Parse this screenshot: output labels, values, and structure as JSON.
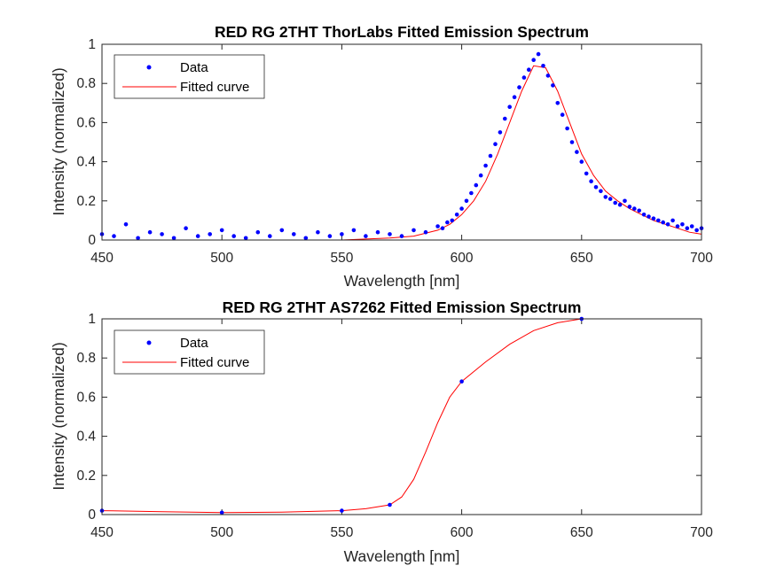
{
  "colors": {
    "data": "#0000ff",
    "fit": "#ff0000",
    "axis": "#262626"
  },
  "chart_data": [
    {
      "type": "scatter",
      "title": "RED RG 2THT ThorLabs Fitted Emission Spectrum",
      "xlabel": "Wavelength [nm]",
      "ylabel": "Intensity (normalized)",
      "xlim": [
        450,
        700
      ],
      "ylim": [
        0,
        1
      ],
      "xticks": [
        450,
        500,
        550,
        600,
        650,
        700
      ],
      "yticks": [
        0,
        0.2,
        0.4,
        0.6,
        0.8,
        1
      ],
      "xtick_labels": [
        "450",
        "500",
        "550",
        "600",
        "650",
        "700"
      ],
      "ytick_labels": [
        "0",
        "0.2",
        "0.4",
        "0.6",
        "0.8",
        "1"
      ],
      "legend": {
        "position": "top-left",
        "entries": [
          "Data",
          "Fitted curve"
        ]
      },
      "series": [
        {
          "name": "Data",
          "style": "points",
          "x": [
            450,
            455,
            460,
            465,
            470,
            475,
            480,
            485,
            490,
            495,
            500,
            505,
            510,
            515,
            520,
            525,
            530,
            535,
            540,
            545,
            550,
            555,
            560,
            565,
            570,
            575,
            580,
            585,
            590,
            592,
            594,
            596,
            598,
            600,
            602,
            604,
            606,
            608,
            610,
            612,
            614,
            616,
            618,
            620,
            622,
            624,
            626,
            628,
            630,
            632,
            634,
            636,
            638,
            640,
            642,
            644,
            646,
            648,
            650,
            652,
            654,
            656,
            658,
            660,
            662,
            664,
            666,
            668,
            670,
            672,
            674,
            676,
            678,
            680,
            682,
            684,
            686,
            688,
            690,
            692,
            694,
            696,
            698,
            700
          ],
          "y": [
            0.03,
            0.02,
            0.08,
            0.01,
            0.04,
            0.03,
            0.01,
            0.06,
            0.02,
            0.03,
            0.05,
            0.02,
            0.01,
            0.04,
            0.02,
            0.05,
            0.03,
            0.01,
            0.04,
            0.02,
            0.03,
            0.05,
            0.02,
            0.04,
            0.03,
            0.02,
            0.05,
            0.04,
            0.07,
            0.06,
            0.09,
            0.1,
            0.13,
            0.16,
            0.2,
            0.24,
            0.28,
            0.33,
            0.38,
            0.43,
            0.49,
            0.55,
            0.62,
            0.68,
            0.73,
            0.78,
            0.83,
            0.87,
            0.92,
            0.95,
            0.89,
            0.84,
            0.79,
            0.7,
            0.64,
            0.57,
            0.5,
            0.45,
            0.4,
            0.34,
            0.3,
            0.27,
            0.25,
            0.22,
            0.21,
            0.19,
            0.18,
            0.2,
            0.17,
            0.16,
            0.15,
            0.13,
            0.12,
            0.11,
            0.1,
            0.09,
            0.08,
            0.1,
            0.07,
            0.08,
            0.06,
            0.07,
            0.05,
            0.06
          ]
        },
        {
          "name": "Fitted curve",
          "style": "line",
          "x": [
            450,
            500,
            550,
            570,
            580,
            590,
            595,
            600,
            605,
            610,
            615,
            620,
            625,
            630,
            635,
            640,
            645,
            650,
            655,
            660,
            665,
            670,
            675,
            680,
            685,
            690,
            695,
            700
          ],
          "y": [
            0.0,
            0.0,
            0.0,
            0.01,
            0.02,
            0.05,
            0.08,
            0.13,
            0.2,
            0.3,
            0.44,
            0.6,
            0.76,
            0.89,
            0.88,
            0.76,
            0.6,
            0.44,
            0.33,
            0.25,
            0.2,
            0.16,
            0.13,
            0.1,
            0.08,
            0.06,
            0.04,
            0.03
          ]
        }
      ]
    },
    {
      "type": "scatter",
      "title": "RED RG 2THT AS7262 Fitted Emission Spectrum",
      "xlabel": "Wavelength [nm]",
      "ylabel": "Intensity (normalized)",
      "xlim": [
        450,
        700
      ],
      "ylim": [
        0,
        1
      ],
      "xticks": [
        450,
        500,
        550,
        600,
        650,
        700
      ],
      "yticks": [
        0,
        0.2,
        0.4,
        0.6,
        0.8,
        1
      ],
      "xtick_labels": [
        "450",
        "500",
        "550",
        "600",
        "650",
        "700"
      ],
      "ytick_labels": [
        "0",
        "0.2",
        "0.4",
        "0.6",
        "0.8",
        "1"
      ],
      "legend": {
        "position": "top-left",
        "entries": [
          "Data",
          "Fitted curve"
        ]
      },
      "series": [
        {
          "name": "Data",
          "style": "points",
          "x": [
            450,
            500,
            550,
            570,
            600,
            650
          ],
          "y": [
            0.02,
            0.01,
            0.02,
            0.05,
            0.68,
            1.0
          ]
        },
        {
          "name": "Fitted curve",
          "style": "line",
          "x": [
            450,
            475,
            500,
            525,
            550,
            560,
            570,
            575,
            580,
            585,
            590,
            595,
            600,
            610,
            620,
            630,
            640,
            650
          ],
          "y": [
            0.02,
            0.015,
            0.01,
            0.012,
            0.02,
            0.03,
            0.05,
            0.09,
            0.18,
            0.32,
            0.47,
            0.6,
            0.68,
            0.78,
            0.87,
            0.94,
            0.98,
            1.0
          ]
        }
      ]
    }
  ]
}
